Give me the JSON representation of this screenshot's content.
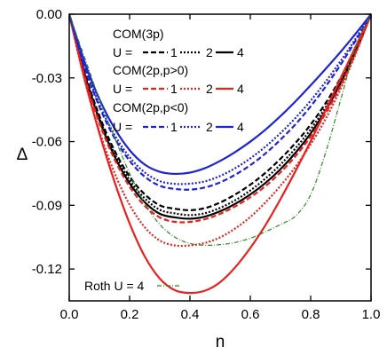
{
  "chart_data": {
    "type": "line",
    "xlabel": "n",
    "ylabel": "Δ",
    "xlim": [
      0.0,
      1.0
    ],
    "ylim": [
      -0.135,
      0.0
    ],
    "x_ticks": [
      "0.0",
      "0.2",
      "0.4",
      "0.6",
      "0.8",
      "1.0"
    ],
    "y_ticks": [
      "0.00",
      "-0.03",
      "-0.06",
      "-0.09",
      "-0.12"
    ],
    "grid": false,
    "legend_position": "top-center",
    "legend": {
      "groups": [
        {
          "title": "COM(3p)",
          "prefix": "U =",
          "labels": [
            "1",
            "2",
            "4"
          ],
          "color": "#000000"
        },
        {
          "title": "COM(2p,p>0)",
          "prefix": "U =",
          "labels": [
            "1",
            "2",
            "4"
          ],
          "color": "#e8201e"
        },
        {
          "title": "COM(2p,p<0)",
          "prefix": "U =",
          "labels": [
            "1",
            "2",
            "4"
          ],
          "color": "#1f23d6"
        }
      ],
      "roth_label": "Roth U = 4"
    },
    "colors": {
      "black": "#000000",
      "red": "#e8201e",
      "blue": "#1f23d6",
      "green": "#2e8b22"
    },
    "series": [
      {
        "group": "COM(3p)",
        "U": 1,
        "color": "#000000",
        "style": "dashed",
        "x": [
          0.0,
          0.05,
          0.1,
          0.15,
          0.2,
          0.25,
          0.3,
          0.35,
          0.4,
          0.45,
          0.5,
          0.55,
          0.6,
          0.65,
          0.7,
          0.75,
          0.8,
          0.85,
          0.9,
          0.95,
          1.0
        ],
        "y": [
          0.0,
          -0.0268,
          -0.0479,
          -0.0642,
          -0.0764,
          -0.0848,
          -0.09,
          -0.0916,
          -0.0923,
          -0.0913,
          -0.0887,
          -0.0849,
          -0.0803,
          -0.0747,
          -0.0681,
          -0.0606,
          -0.052,
          -0.0418,
          -0.0298,
          -0.0158,
          0.0
        ]
      },
      {
        "group": "COM(3p)",
        "U": 2,
        "color": "#000000",
        "style": "dotted",
        "x": [
          0.0,
          0.05,
          0.1,
          0.15,
          0.2,
          0.25,
          0.3,
          0.35,
          0.4,
          0.45,
          0.5,
          0.55,
          0.6,
          0.65,
          0.7,
          0.75,
          0.8,
          0.85,
          0.9,
          0.95,
          1.0
        ],
        "y": [
          0.0,
          -0.0274,
          -0.049,
          -0.0657,
          -0.0781,
          -0.0867,
          -0.0921,
          -0.0938,
          -0.0946,
          -0.0937,
          -0.0912,
          -0.0876,
          -0.083,
          -0.0774,
          -0.0708,
          -0.0631,
          -0.0542,
          -0.0437,
          -0.0312,
          -0.0166,
          0.0
        ]
      },
      {
        "group": "COM(3p)",
        "U": 4,
        "color": "#000000",
        "style": "solid",
        "x": [
          0.0,
          0.05,
          0.1,
          0.15,
          0.2,
          0.25,
          0.3,
          0.35,
          0.4,
          0.45,
          0.5,
          0.55,
          0.6,
          0.65,
          0.7,
          0.75,
          0.8,
          0.85,
          0.9,
          0.95,
          1.0
        ],
        "y": [
          0.0,
          -0.0278,
          -0.0499,
          -0.0669,
          -0.0796,
          -0.0885,
          -0.094,
          -0.0957,
          -0.0963,
          -0.0953,
          -0.0928,
          -0.0893,
          -0.0849,
          -0.0795,
          -0.073,
          -0.0652,
          -0.0561,
          -0.0452,
          -0.0323,
          -0.0172,
          0.0
        ]
      },
      {
        "group": "COM(2p,p>0)",
        "U": 1,
        "color": "#e8201e",
        "style": "dashed",
        "x": [
          0.0,
          0.05,
          0.1,
          0.15,
          0.2,
          0.25,
          0.3,
          0.35,
          0.4,
          0.45,
          0.5,
          0.55,
          0.6,
          0.65,
          0.7,
          0.75,
          0.8,
          0.85,
          0.9,
          0.95,
          1.0
        ],
        "y": [
          0.0,
          -0.0287,
          -0.0512,
          -0.0683,
          -0.0812,
          -0.0902,
          -0.0957,
          -0.0978,
          -0.0978,
          -0.0965,
          -0.094,
          -0.0905,
          -0.0862,
          -0.081,
          -0.0745,
          -0.0668,
          -0.0576,
          -0.0466,
          -0.0334,
          -0.0178,
          0.0
        ]
      },
      {
        "group": "COM(2p,p>0)",
        "U": 2,
        "color": "#e8201e",
        "style": "dotted",
        "x": [
          0.0,
          0.05,
          0.1,
          0.15,
          0.2,
          0.25,
          0.3,
          0.35,
          0.4,
          0.45,
          0.5,
          0.55,
          0.6,
          0.65,
          0.7,
          0.75,
          0.8,
          0.85,
          0.9,
          0.95,
          1.0
        ],
        "y": [
          0.0,
          -0.0305,
          -0.0552,
          -0.0747,
          -0.0897,
          -0.1003,
          -0.1066,
          -0.1089,
          -0.1089,
          -0.1077,
          -0.1051,
          -0.1009,
          -0.0955,
          -0.0887,
          -0.0808,
          -0.0718,
          -0.0613,
          -0.0492,
          -0.0349,
          -0.0184,
          0.0
        ]
      },
      {
        "group": "COM(2p,p>0)",
        "U": 4,
        "color": "#e8201e",
        "style": "solid",
        "x": [
          0.0,
          0.05,
          0.1,
          0.15,
          0.2,
          0.25,
          0.3,
          0.35,
          0.4,
          0.45,
          0.5,
          0.55,
          0.6,
          0.65,
          0.7,
          0.75,
          0.8,
          0.85,
          0.9,
          0.95,
          1.0
        ],
        "y": [
          0.0,
          -0.03,
          -0.0561,
          -0.0789,
          -0.0985,
          -0.114,
          -0.1245,
          -0.13,
          -0.1313,
          -0.1302,
          -0.1262,
          -0.1192,
          -0.1101,
          -0.0994,
          -0.0871,
          -0.0738,
          -0.0598,
          -0.0451,
          -0.03,
          -0.015,
          0.0
        ]
      },
      {
        "group": "COM(2p,p<0)",
        "U": 1,
        "color": "#1f23d6",
        "style": "dashed",
        "x": [
          0.0,
          0.05,
          0.1,
          0.15,
          0.2,
          0.25,
          0.3,
          0.35,
          0.4,
          0.45,
          0.5,
          0.55,
          0.6,
          0.65,
          0.7,
          0.75,
          0.8,
          0.85,
          0.9,
          0.95,
          1.0
        ],
        "y": [
          0.0,
          -0.0243,
          -0.0436,
          -0.0583,
          -0.069,
          -0.0765,
          -0.0808,
          -0.0823,
          -0.0826,
          -0.0816,
          -0.0792,
          -0.0756,
          -0.0711,
          -0.0656,
          -0.0591,
          -0.0518,
          -0.0434,
          -0.034,
          -0.0236,
          -0.0122,
          0.0
        ]
      },
      {
        "group": "COM(2p,p<0)",
        "U": 2,
        "color": "#1f23d6",
        "style": "dotted",
        "x": [
          0.0,
          0.05,
          0.1,
          0.15,
          0.2,
          0.25,
          0.3,
          0.35,
          0.4,
          0.45,
          0.5,
          0.55,
          0.6,
          0.65,
          0.7,
          0.75,
          0.8,
          0.85,
          0.9,
          0.95,
          1.0
        ],
        "y": [
          0.0,
          -0.0237,
          -0.0425,
          -0.0568,
          -0.0673,
          -0.0745,
          -0.0786,
          -0.0799,
          -0.0798,
          -0.0787,
          -0.0762,
          -0.0725,
          -0.0679,
          -0.0624,
          -0.056,
          -0.0488,
          -0.0407,
          -0.0317,
          -0.0219,
          -0.0113,
          0.0
        ]
      },
      {
        "group": "COM(2p,p<0)",
        "U": 4,
        "color": "#1f23d6",
        "style": "solid",
        "x": [
          0.0,
          0.05,
          0.1,
          0.15,
          0.2,
          0.25,
          0.3,
          0.35,
          0.4,
          0.45,
          0.5,
          0.55,
          0.6,
          0.65,
          0.7,
          0.75,
          0.8,
          0.85,
          0.9,
          0.95,
          1.0
        ],
        "y": [
          0.0,
          -0.0222,
          -0.04,
          -0.0537,
          -0.064,
          -0.0708,
          -0.0742,
          -0.0752,
          -0.0746,
          -0.0725,
          -0.0691,
          -0.0649,
          -0.06,
          -0.0544,
          -0.048,
          -0.041,
          -0.0335,
          -0.0257,
          -0.0176,
          -0.009,
          0.0
        ]
      },
      {
        "group": "Roth",
        "U": 4,
        "color": "#2e8b22",
        "style": "dashdot",
        "x": [
          0.0,
          0.05,
          0.1,
          0.15,
          0.2,
          0.25,
          0.3,
          0.35,
          0.4,
          0.45,
          0.5,
          0.55,
          0.6,
          0.65,
          0.7,
          0.75,
          0.8,
          0.85,
          0.9,
          0.95,
          1.0
        ],
        "y": [
          0.0,
          -0.02,
          -0.04,
          -0.058,
          -0.075,
          -0.089,
          -0.099,
          -0.105,
          -0.108,
          -0.1088,
          -0.1085,
          -0.1075,
          -0.1055,
          -0.1025,
          -0.099,
          -0.095,
          -0.085,
          -0.065,
          -0.04,
          -0.015,
          0.0
        ]
      }
    ]
  }
}
